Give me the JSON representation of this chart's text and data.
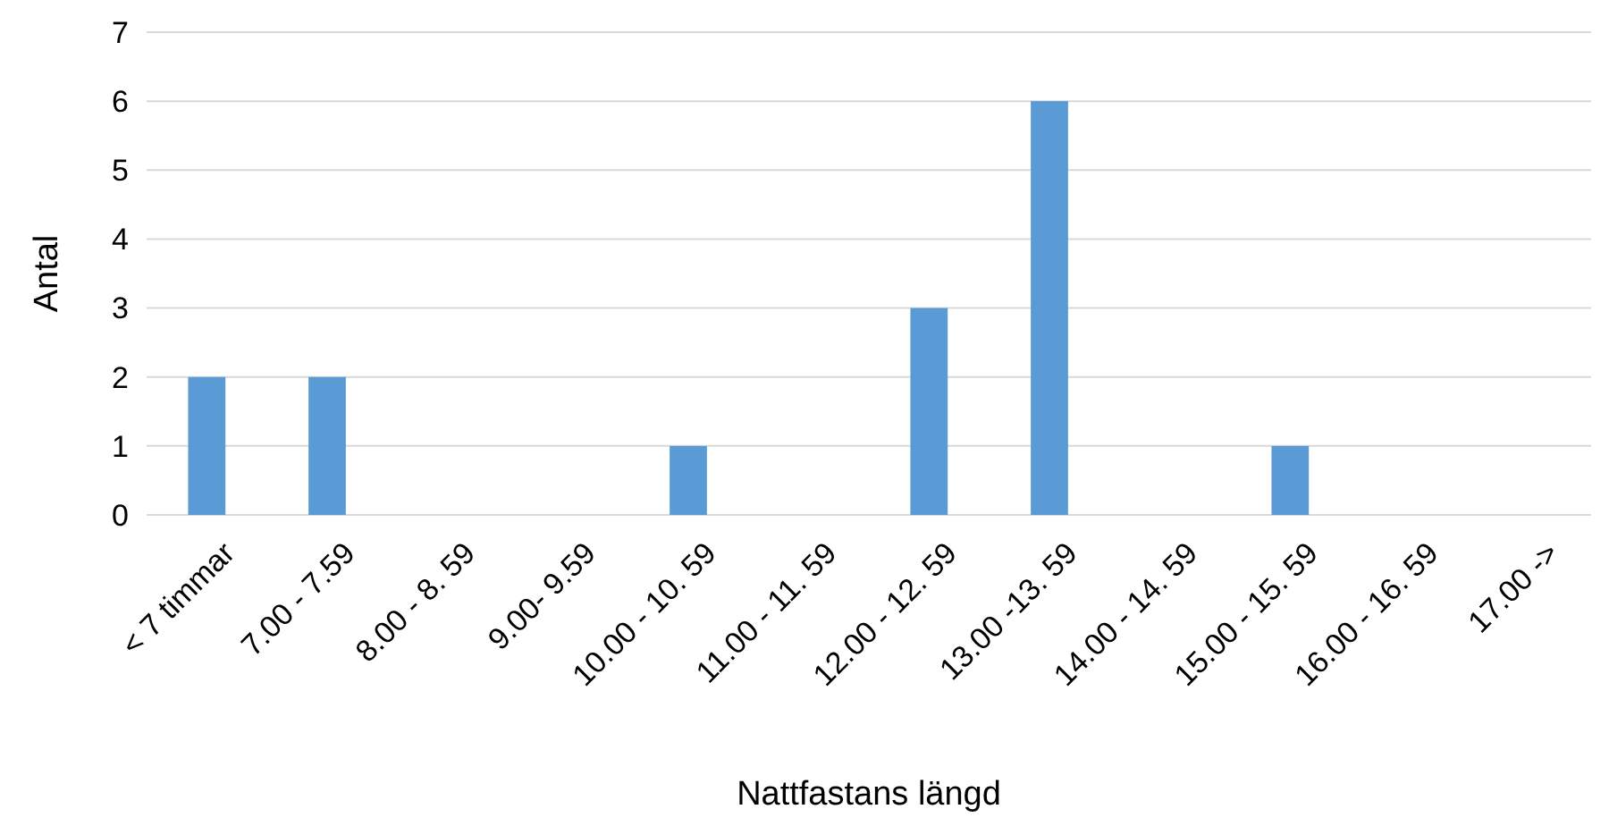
{
  "chart_data": {
    "type": "bar",
    "xlabel": "Nattfastans längd",
    "ylabel": "Antal",
    "categories": [
      "< 7 timmar",
      "7.00 - 7.59",
      "8.00 - 8. 59",
      "9.00- 9.59",
      "10.00 - 10. 59",
      "11.00 - 11. 59",
      "12.00 - 12. 59",
      "13.00 -13. 59",
      "14.00 - 14. 59",
      "15.00 - 15. 59",
      "16.00 - 16. 59",
      "17.00 ->"
    ],
    "values": [
      2,
      2,
      0,
      0,
      1,
      0,
      3,
      6,
      0,
      1,
      0,
      0
    ],
    "color": "#5b9bd5",
    "ylim": [
      0,
      7
    ],
    "yticks": [
      0,
      1,
      2,
      3,
      4,
      5,
      6,
      7
    ],
    "grid": "y"
  }
}
